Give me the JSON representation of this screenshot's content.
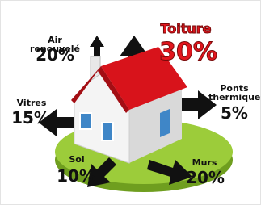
{
  "labels": [
    {
      "name": "Air renouvelé",
      "value": "20%"
    },
    {
      "name": "Toiture",
      "value": "30%"
    },
    {
      "name": "Ponts thermiques",
      "value": "5%"
    },
    {
      "name": "Vitres",
      "value": "15%"
    },
    {
      "name": "Sol",
      "value": "10%"
    },
    {
      "name": "Murs",
      "value": "20%"
    }
  ]
}
